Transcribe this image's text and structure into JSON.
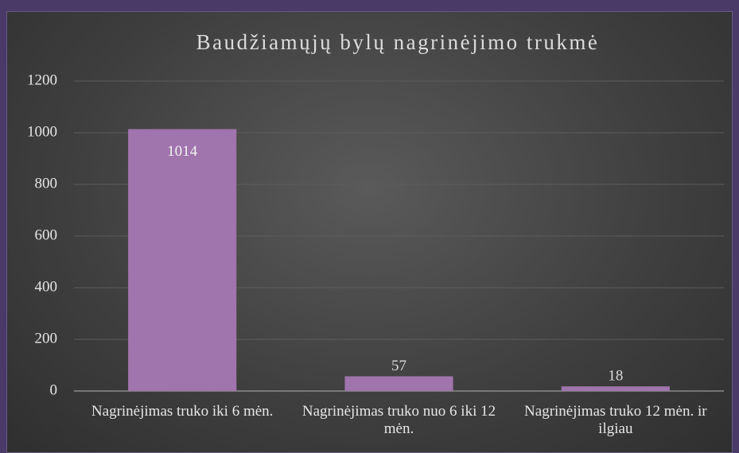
{
  "chart_data": {
    "type": "bar",
    "title": "Baudžiamųjų bylų nagrinėjimo trukmė",
    "categories": [
      "Nagrinėjimas truko iki 6 mėn.",
      "Nagrinėjimas truko nuo 6 iki 12 mėn.",
      "Nagrinėjimas truko 12 mėn. ir ilgiau"
    ],
    "values": [
      1014,
      57,
      18
    ],
    "color": "#a074ac",
    "ylim": [
      0,
      1200
    ],
    "yticks": [
      0,
      200,
      400,
      600,
      800,
      1000,
      1200
    ],
    "grid": true
  }
}
